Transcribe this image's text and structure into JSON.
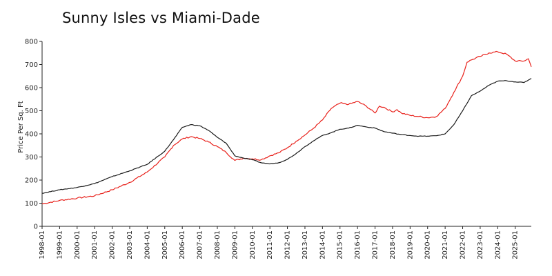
{
  "chart_data": {
    "type": "line",
    "title": "Sunny Isles vs Miami-Dade",
    "xlabel": "",
    "ylabel": "Price Per Sq. Ft",
    "ylim": [
      0,
      800
    ],
    "yticks": [
      0,
      100,
      200,
      300,
      400,
      500,
      600,
      700,
      800
    ],
    "x_tick_labels": [
      "1998-01",
      "1999-01",
      "2000-01",
      "2001-01",
      "2002-01",
      "2003-01",
      "2004-01",
      "2005-01",
      "2006-01",
      "2007-01",
      "2008-01",
      "2009-01",
      "2010-01",
      "2011-01",
      "2012-01",
      "2013-01",
      "2014-01",
      "2015-01",
      "2016-01",
      "2017-01",
      "2018-01",
      "2019-01",
      "2020-01",
      "2021-01",
      "2022-01",
      "2023-01",
      "2024-01",
      "2025-01"
    ],
    "x_range": [
      "1998-01",
      "2025-12"
    ],
    "grid": false,
    "legend": "none",
    "series": [
      {
        "color": "#e8201a",
        "points": [
          [
            "1998-01",
            97
          ],
          [
            "1999-01",
            112
          ],
          [
            "2000-01",
            122
          ],
          [
            "2001-01",
            132
          ],
          [
            "2002-01",
            158
          ],
          [
            "2003-01",
            190
          ],
          [
            "2004-01",
            235
          ],
          [
            "2005-01",
            300
          ],
          [
            "2005-07",
            350
          ],
          [
            "2006-01",
            378
          ],
          [
            "2006-07",
            388
          ],
          [
            "2007-01",
            380
          ],
          [
            "2007-07",
            365
          ],
          [
            "2008-01",
            345
          ],
          [
            "2008-07",
            320
          ],
          [
            "2009-01",
            285
          ],
          [
            "2009-07",
            295
          ],
          [
            "2010-01",
            292
          ],
          [
            "2010-07",
            288
          ],
          [
            "2011-01",
            305
          ],
          [
            "2011-07",
            318
          ],
          [
            "2012-01",
            340
          ],
          [
            "2012-07",
            368
          ],
          [
            "2013-01",
            395
          ],
          [
            "2013-07",
            425
          ],
          [
            "2014-01",
            460
          ],
          [
            "2014-07",
            510
          ],
          [
            "2015-01",
            533
          ],
          [
            "2015-07",
            528
          ],
          [
            "2016-01",
            540
          ],
          [
            "2016-07",
            520
          ],
          [
            "2017-01",
            490
          ],
          [
            "2017-04",
            520
          ],
          [
            "2017-07",
            515
          ],
          [
            "2018-01",
            495
          ],
          [
            "2018-04",
            505
          ],
          [
            "2018-07",
            490
          ],
          [
            "2019-01",
            480
          ],
          [
            "2019-07",
            475
          ],
          [
            "2020-01",
            470
          ],
          [
            "2020-07",
            475
          ],
          [
            "2021-01",
            510
          ],
          [
            "2021-07",
            580
          ],
          [
            "2022-01",
            650
          ],
          [
            "2022-04",
            710
          ],
          [
            "2022-07",
            720
          ],
          [
            "2023-01",
            735
          ],
          [
            "2023-07",
            750
          ],
          [
            "2024-01",
            755
          ],
          [
            "2024-07",
            745
          ],
          [
            "2025-01",
            715
          ],
          [
            "2025-07",
            715
          ],
          [
            "2025-10",
            725
          ],
          [
            "2025-12",
            690
          ]
        ]
      },
      {
        "color": "#1a1a1a",
        "points": [
          [
            "1998-01",
            143
          ],
          [
            "1999-01",
            158
          ],
          [
            "2000-01",
            168
          ],
          [
            "2001-01",
            185
          ],
          [
            "2002-01",
            215
          ],
          [
            "2003-01",
            240
          ],
          [
            "2004-01",
            268
          ],
          [
            "2005-01",
            325
          ],
          [
            "2005-07",
            375
          ],
          [
            "2006-01",
            428
          ],
          [
            "2006-07",
            440
          ],
          [
            "2007-01",
            435
          ],
          [
            "2007-07",
            415
          ],
          [
            "2008-01",
            385
          ],
          [
            "2008-07",
            360
          ],
          [
            "2009-01",
            305
          ],
          [
            "2009-07",
            295
          ],
          [
            "2010-01",
            288
          ],
          [
            "2010-07",
            275
          ],
          [
            "2011-01",
            270
          ],
          [
            "2011-07",
            275
          ],
          [
            "2012-01",
            290
          ],
          [
            "2012-07",
            315
          ],
          [
            "2013-01",
            345
          ],
          [
            "2013-07",
            370
          ],
          [
            "2014-01",
            393
          ],
          [
            "2014-07",
            405
          ],
          [
            "2015-01",
            420
          ],
          [
            "2015-07",
            425
          ],
          [
            "2016-01",
            437
          ],
          [
            "2016-07",
            430
          ],
          [
            "2017-01",
            425
          ],
          [
            "2017-07",
            410
          ],
          [
            "2018-01",
            403
          ],
          [
            "2018-07",
            397
          ],
          [
            "2019-01",
            393
          ],
          [
            "2019-07",
            390
          ],
          [
            "2020-01",
            390
          ],
          [
            "2020-07",
            392
          ],
          [
            "2021-01",
            400
          ],
          [
            "2021-07",
            440
          ],
          [
            "2022-01",
            500
          ],
          [
            "2022-07",
            565
          ],
          [
            "2023-01",
            585
          ],
          [
            "2023-07",
            610
          ],
          [
            "2024-01",
            628
          ],
          [
            "2024-07",
            630
          ],
          [
            "2025-01",
            625
          ],
          [
            "2025-07",
            622
          ],
          [
            "2025-12",
            640
          ]
        ]
      }
    ]
  }
}
